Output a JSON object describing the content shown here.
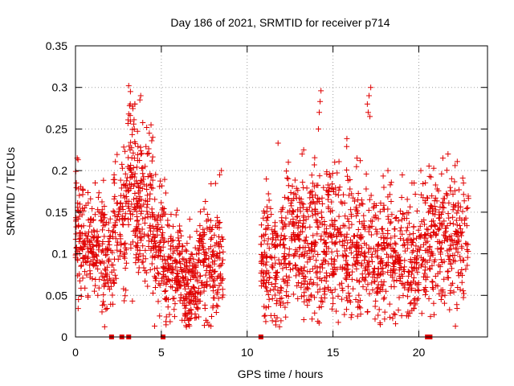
{
  "chart_data": {
    "type": "scatter",
    "title": "Day 186 of 2021, SRMTID for receiver p714",
    "xlabel": "GPS time / hours",
    "ylabel": "SRMTID / TECUs",
    "xlim": [
      0,
      24
    ],
    "ylim": [
      0,
      0.35
    ],
    "grid": true,
    "marker": "+",
    "color": "#e00000",
    "x_ticks": [
      0,
      5,
      10,
      15,
      20
    ],
    "x_tick_labels": [
      "0",
      "5",
      "10",
      "15",
      "20"
    ],
    "y_ticks": [
      0,
      0.05,
      0.1,
      0.15,
      0.2,
      0.25,
      0.3,
      0.35
    ],
    "y_tick_labels": [
      "0",
      "0.05",
      "0.1",
      "0.15",
      "0.2",
      "0.25",
      "0.3",
      "0.35"
    ],
    "zero_markers_x": [
      2.1,
      2.7,
      3.1,
      5.1,
      10.8,
      20.5,
      20.65
    ],
    "segments": [
      {
        "x_start": 0.0,
        "x_end": 0.5,
        "base": 0.12,
        "spread": 0.04,
        "n": 70
      },
      {
        "x_start": 0.5,
        "x_end": 1.7,
        "base": 0.11,
        "spread": 0.035,
        "n": 140
      },
      {
        "x_start": 1.7,
        "x_end": 2.2,
        "base": 0.095,
        "spread": 0.03,
        "n": 50
      },
      {
        "x_start": 2.2,
        "x_end": 3.0,
        "base": 0.14,
        "spread": 0.04,
        "n": 90
      },
      {
        "x_start": 3.0,
        "x_end": 3.5,
        "base": 0.19,
        "spread": 0.055,
        "n": 70
      },
      {
        "x_start": 3.5,
        "x_end": 4.5,
        "base": 0.16,
        "spread": 0.045,
        "n": 140
      },
      {
        "x_start": 4.5,
        "x_end": 5.2,
        "base": 0.11,
        "spread": 0.035,
        "n": 90
      },
      {
        "x_start": 5.2,
        "x_end": 6.2,
        "base": 0.085,
        "spread": 0.03,
        "n": 120
      },
      {
        "x_start": 6.2,
        "x_end": 7.2,
        "base": 0.065,
        "spread": 0.028,
        "n": 140
      },
      {
        "x_start": 7.2,
        "x_end": 8.6,
        "base": 0.085,
        "spread": 0.035,
        "n": 160
      },
      {
        "x_start": 10.8,
        "x_end": 12.0,
        "base": 0.09,
        "spread": 0.035,
        "n": 140
      },
      {
        "x_start": 12.0,
        "x_end": 13.5,
        "base": 0.115,
        "spread": 0.04,
        "n": 180
      },
      {
        "x_start": 13.5,
        "x_end": 15.0,
        "base": 0.12,
        "spread": 0.045,
        "n": 180
      },
      {
        "x_start": 15.0,
        "x_end": 17.0,
        "base": 0.11,
        "spread": 0.045,
        "n": 220
      },
      {
        "x_start": 17.0,
        "x_end": 18.5,
        "base": 0.1,
        "spread": 0.04,
        "n": 160
      },
      {
        "x_start": 18.5,
        "x_end": 20.0,
        "base": 0.09,
        "spread": 0.035,
        "n": 160
      },
      {
        "x_start": 20.0,
        "x_end": 21.0,
        "base": 0.12,
        "spread": 0.04,
        "n": 110
      },
      {
        "x_start": 21.0,
        "x_end": 22.9,
        "base": 0.12,
        "spread": 0.04,
        "n": 190
      }
    ],
    "peaks": [
      [
        0.1,
        0.215
      ],
      [
        0.05,
        0.185
      ],
      [
        2.25,
        0.195
      ],
      [
        3.1,
        0.302
      ],
      [
        3.2,
        0.295
      ],
      [
        3.15,
        0.278
      ],
      [
        3.1,
        0.268
      ],
      [
        3.8,
        0.29
      ],
      [
        3.75,
        0.285
      ],
      [
        4.4,
        0.255
      ],
      [
        4.3,
        0.245
      ],
      [
        4.5,
        0.24
      ],
      [
        4.2,
        0.22
      ],
      [
        8.5,
        0.2
      ],
      [
        8.4,
        0.195
      ],
      [
        11.8,
        0.233
      ],
      [
        14.3,
        0.296
      ],
      [
        14.25,
        0.283
      ],
      [
        14.2,
        0.27
      ],
      [
        14.15,
        0.25
      ],
      [
        17.2,
        0.3
      ],
      [
        17.1,
        0.29
      ],
      [
        17.0,
        0.28
      ],
      [
        17.15,
        0.265
      ],
      [
        17.05,
        0.27
      ],
      [
        15.1,
        0.21
      ],
      [
        16.4,
        0.215
      ],
      [
        21.7,
        0.22
      ],
      [
        21.4,
        0.215
      ],
      [
        13.2,
        0.22
      ],
      [
        12.4,
        0.21
      ],
      [
        14.8,
        0.195
      ],
      [
        18.2,
        0.2
      ],
      [
        19.6,
        0.185
      ],
      [
        22.6,
        0.185
      ],
      [
        6.6,
        0.015
      ],
      [
        6.4,
        0.025
      ],
      [
        7.6,
        0.02
      ],
      [
        11.0,
        0.025
      ],
      [
        11.1,
        0.035
      ],
      [
        19.4,
        0.025
      ],
      [
        19.5,
        0.04
      ],
      [
        17.0,
        0.03
      ],
      [
        15.0,
        0.04
      ],
      [
        1.1,
        0.055
      ],
      [
        1.9,
        0.065
      ],
      [
        5.8,
        0.04
      ],
      [
        8.0,
        0.035
      ],
      [
        21.3,
        0.045
      ],
      [
        13.6,
        0.045
      ]
    ]
  }
}
